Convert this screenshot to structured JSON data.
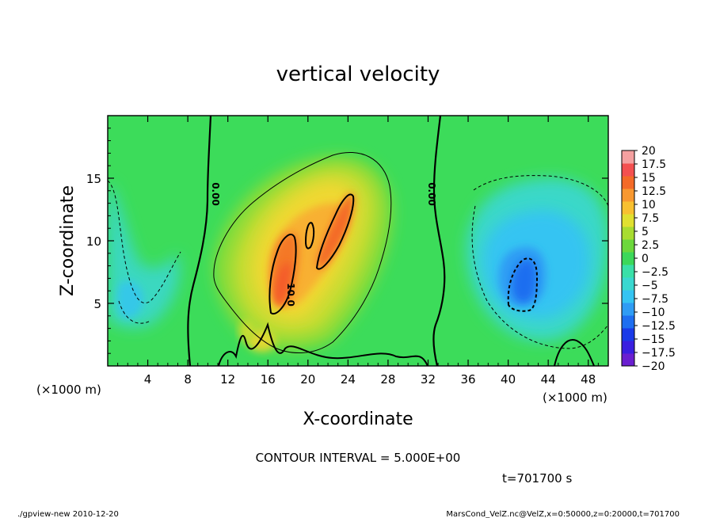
{
  "chart_data": {
    "type": "heatmap",
    "title": "vertical velocity",
    "xlabel": "X-coordinate",
    "ylabel": "Z-coordinate",
    "x_unit_left": "(×1000 m)",
    "x_unit_right": "(×1000 m)",
    "xlim": [
      0,
      50
    ],
    "ylim": [
      0,
      20
    ],
    "x_ticks": [
      {
        "value": 4,
        "label": "4"
      },
      {
        "value": 8,
        "label": "8"
      },
      {
        "value": 12,
        "label": "12"
      },
      {
        "value": 16,
        "label": "16"
      },
      {
        "value": 20,
        "label": "20"
      },
      {
        "value": 24,
        "label": "24"
      },
      {
        "value": 28,
        "label": "28"
      },
      {
        "value": 32,
        "label": "32"
      },
      {
        "value": 36,
        "label": "36"
      },
      {
        "value": 40,
        "label": "40"
      },
      {
        "value": 44,
        "label": "44"
      },
      {
        "value": 48,
        "label": "48"
      }
    ],
    "y_ticks": [
      {
        "value": 5,
        "label": "5"
      },
      {
        "value": 10,
        "label": "10"
      },
      {
        "value": 15,
        "label": "15"
      }
    ],
    "colorbar": {
      "levels": [
        -20,
        -17.5,
        -15,
        -12.5,
        -10,
        -7.5,
        -5,
        -2.5,
        0,
        2.5,
        5,
        7.5,
        10,
        12.5,
        15,
        17.5,
        20
      ],
      "labels": [
        "20",
        "17.5",
        "15",
        "12.5",
        "10",
        "7.5",
        "5",
        "2.5",
        "0",
        "−2.5",
        "−5",
        "−7.5",
        "−10",
        "−12.5",
        "−15",
        "−17.5",
        "−20"
      ],
      "colors": [
        "#6a1fd0",
        "#3a1fe0",
        "#1a3ae8",
        "#1e6ef0",
        "#2f9cf4",
        "#35c4f2",
        "#3ad8d0",
        "#3ae0a8",
        "#3cd85a",
        "#6cd83c",
        "#a8dc30",
        "#e0e030",
        "#f8c030",
        "#f89830",
        "#f46a28",
        "#f45050",
        "#f4a0a0"
      ]
    },
    "contour_labels": [
      "0.00",
      "0.00",
      "10.0"
    ],
    "contour_interval_text": "CONTOUR INTERVAL = 5.000E+00",
    "time_text": "t=701700  s",
    "features": [
      {
        "kind": "updraft",
        "x": 20,
        "z": 9,
        "peak": 13
      },
      {
        "kind": "downdraft",
        "x": 41.5,
        "z": 7,
        "peak": -11
      },
      {
        "kind": "downdraft",
        "x": 3.5,
        "z": 5.5,
        "peak": -6
      }
    ]
  },
  "footer": {
    "left": "./gpview-new   2010-12-20",
    "right": "MarsCond_VelZ.nc@VelZ,x=0:50000,z=0:20000,t=701700"
  }
}
